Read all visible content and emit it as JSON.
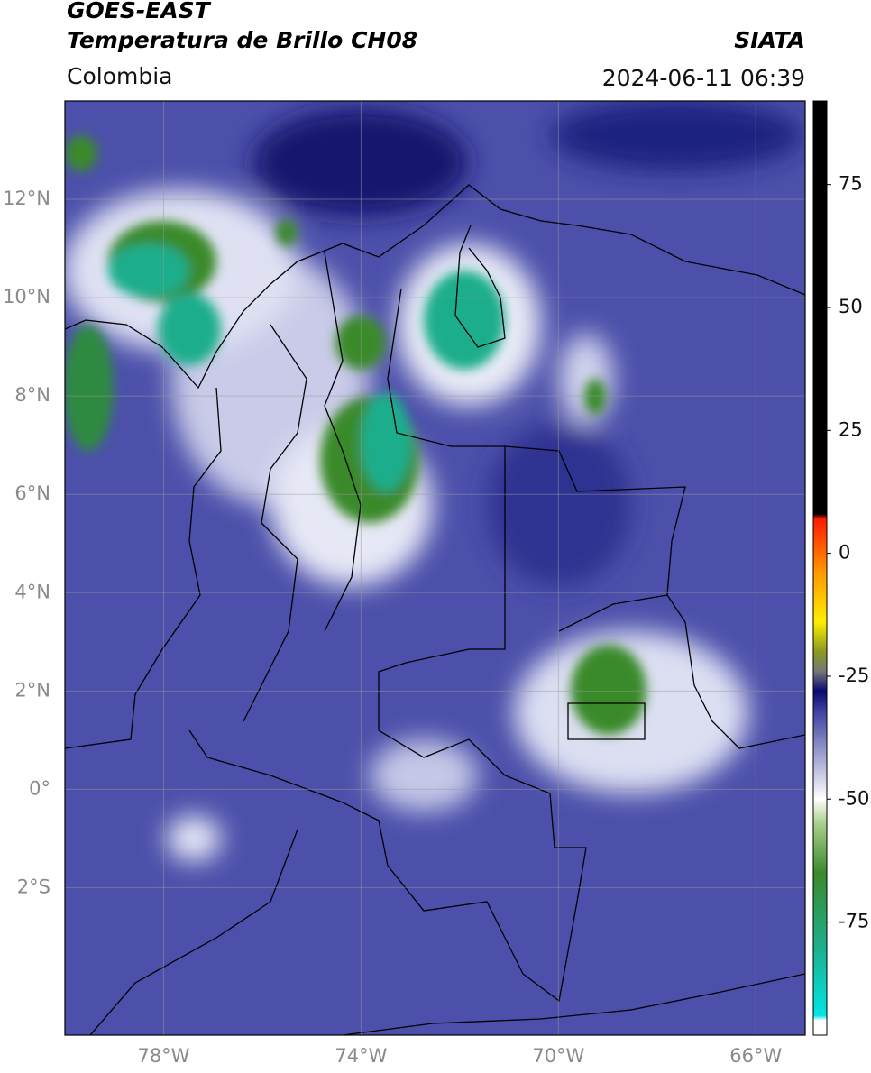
{
  "chart_data": {
    "type": "map",
    "title": "GOES-EAST",
    "subtitle": "Temperatura de Brillo CH08",
    "source": "SIATA",
    "region": "Colombia",
    "datetime": "2024-06-11 06:39",
    "xlim": [
      -80,
      -65
    ],
    "ylim": [
      -5,
      14
    ],
    "xticks": [
      {
        "value": -78,
        "label": "78°W"
      },
      {
        "value": -74,
        "label": "74°W"
      },
      {
        "value": -70,
        "label": "70°W"
      },
      {
        "value": -66,
        "label": "66°W"
      }
    ],
    "yticks": [
      {
        "value": -2,
        "label": "2°S"
      },
      {
        "value": 0,
        "label": "0°"
      },
      {
        "value": 2,
        "label": "2°N"
      },
      {
        "value": 4,
        "label": "4°N"
      },
      {
        "value": 6,
        "label": "6°N"
      },
      {
        "value": 8,
        "label": "8°N"
      },
      {
        "value": 10,
        "label": "10°N"
      },
      {
        "value": 12,
        "label": "12°N"
      }
    ],
    "grid": true,
    "clim": [
      -98,
      92
    ],
    "cticks": [
      -75,
      -50,
      -25,
      0,
      25,
      50,
      75
    ],
    "colormap": [
      {
        "value": -98,
        "color": "#ffffff"
      },
      {
        "value": -95,
        "color": "#ffffff"
      },
      {
        "value": -94,
        "color": "#00e5e5"
      },
      {
        "value": -80,
        "color": "#1fae8c"
      },
      {
        "value": -65,
        "color": "#3a8a2c"
      },
      {
        "value": -55,
        "color": "#a8cf8a"
      },
      {
        "value": -50,
        "color": "#ffffff"
      },
      {
        "value": -42,
        "color": "#a9abd6"
      },
      {
        "value": -32,
        "color": "#3c3fa0"
      },
      {
        "value": -28,
        "color": "#0a0a70"
      },
      {
        "value": -24,
        "color": "#777777"
      },
      {
        "value": -20,
        "color": "#8a9a20"
      },
      {
        "value": -14,
        "color": "#ffee00"
      },
      {
        "value": -4,
        "color": "#ff9900"
      },
      {
        "value": 7,
        "color": "#ff1a00"
      },
      {
        "value": 8,
        "color": "#000000"
      },
      {
        "value": 92,
        "color": "#000000"
      }
    ]
  }
}
